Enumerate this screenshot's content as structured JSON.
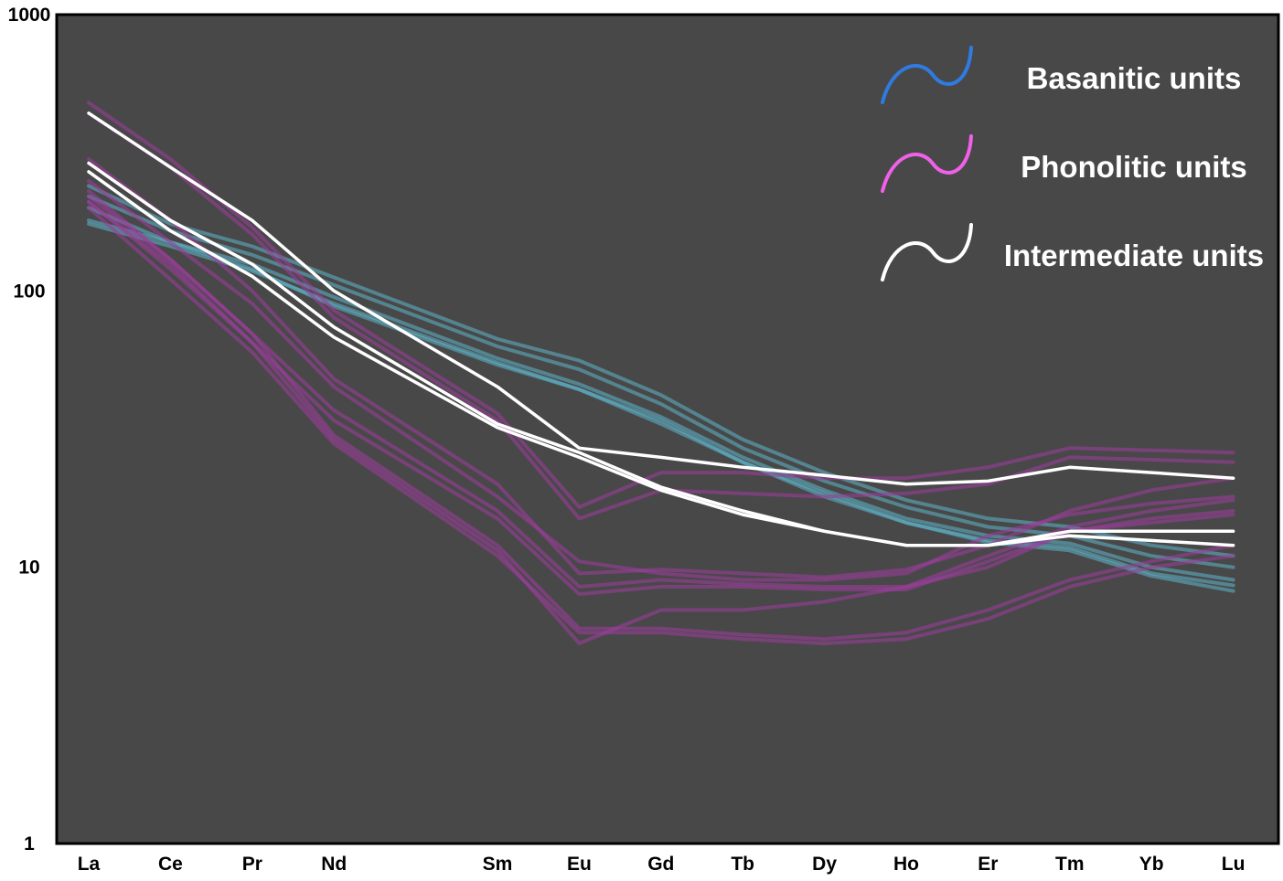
{
  "chart_data": {
    "type": "line",
    "title": "",
    "xlabel": "",
    "ylabel": "",
    "yscale": "log",
    "ylim": [
      1,
      1000
    ],
    "y_ticks": [
      "1",
      "10",
      "100",
      "1000"
    ],
    "y_tick_values": [
      1,
      10,
      100,
      1000
    ],
    "categories": [
      "La",
      "Ce",
      "Pr",
      "Nd",
      "Sm",
      "Eu",
      "Gd",
      "Tb",
      "Dy",
      "Ho",
      "Er",
      "Tm",
      "Yb",
      "Lu"
    ],
    "x_positions": [
      1,
      2,
      3,
      4,
      6,
      7,
      8,
      9,
      10,
      11,
      12,
      13,
      14,
      15
    ],
    "grid": false,
    "legend_position": "top-right",
    "colors": {
      "plot_background": "#484848",
      "basanitic": "#2f7be0",
      "basanitic_lines": "#5fb7cc",
      "phonolitic": "#f060e8",
      "phonolitic_lines": "#9a3e9a",
      "intermediate": "#ffffff"
    },
    "legend": [
      {
        "label": "Basanitic units",
        "group": "basanitic"
      },
      {
        "label": "Phonolitic units",
        "group": "phonolitic"
      },
      {
        "label": "Intermediate units",
        "group": "intermediate"
      }
    ],
    "series": [
      {
        "group": "basanitic",
        "values": [
          200,
          150,
          120,
          88,
          54,
          44,
          33,
          24,
          18,
          14.5,
          12.5,
          11.8,
          9.5,
          8.6
        ]
      },
      {
        "group": "basanitic",
        "values": [
          180,
          150,
          125,
          95,
          57,
          46,
          35,
          25,
          19,
          15,
          13,
          12.2,
          10,
          9
        ]
      },
      {
        "group": "basanitic",
        "values": [
          220,
          165,
          135,
          105,
          63,
          52,
          39,
          27,
          20.5,
          16.5,
          14,
          13,
          11,
          10
        ]
      },
      {
        "group": "basanitic",
        "values": [
          240,
          175,
          145,
          112,
          67,
          56,
          42,
          29,
          22,
          17.5,
          15,
          14,
          12,
          11
        ]
      },
      {
        "group": "basanitic",
        "values": [
          175,
          145,
          118,
          90,
          55,
          44,
          34,
          24,
          18.5,
          14.5,
          12.3,
          11.5,
          9.3,
          8.2
        ]
      },
      {
        "group": "phonolitic",
        "values": [
          480,
          300,
          170,
          85,
          36,
          16.5,
          22,
          22,
          21,
          21,
          23,
          27,
          26.5,
          26
        ]
      },
      {
        "group": "phonolitic",
        "values": [
          440,
          280,
          160,
          80,
          34,
          15,
          19,
          18.5,
          18,
          18.5,
          20,
          25,
          24.5,
          24
        ]
      },
      {
        "group": "phonolitic",
        "values": [
          250,
          150,
          90,
          45,
          18,
          10.5,
          9.5,
          9,
          9,
          9.5,
          13,
          15.5,
          17,
          18
        ]
      },
      {
        "group": "phonolitic",
        "values": [
          300,
          180,
          100,
          48,
          20,
          9.5,
          9.8,
          9.5,
          9.2,
          9.8,
          12,
          16,
          19,
          21
        ]
      },
      {
        "group": "phonolitic",
        "values": [
          220,
          130,
          70,
          37,
          16,
          8.5,
          9,
          8.7,
          8.5,
          8.5,
          11,
          14,
          16,
          17.5
        ]
      },
      {
        "group": "phonolitic",
        "values": [
          210,
          120,
          65,
          34,
          15,
          8,
          8.5,
          8.5,
          8.3,
          8.3,
          10.5,
          13.5,
          15,
          16
        ]
      },
      {
        "group": "phonolitic",
        "values": [
          200,
          110,
          60,
          28,
          11,
          5.8,
          5.8,
          5.5,
          5.3,
          5.5,
          6.5,
          8.5,
          10,
          11
        ]
      },
      {
        "group": "phonolitic",
        "values": [
          230,
          130,
          70,
          30,
          12,
          6,
          6,
          5.7,
          5.5,
          5.8,
          7,
          9,
          10.5,
          12
        ]
      },
      {
        "group": "phonolitic",
        "values": [
          210,
          125,
          65,
          29,
          11.5,
          5.3,
          7,
          7,
          7.5,
          8.5,
          10,
          13.5,
          14.5,
          15.5
        ]
      },
      {
        "group": "intermediate",
        "values": [
          440,
          280,
          180,
          100,
          45,
          27,
          25,
          23,
          21.5,
          20,
          20.5,
          23,
          22,
          21
        ]
      },
      {
        "group": "intermediate",
        "values": [
          290,
          180,
          125,
          74,
          33,
          26,
          19.5,
          16,
          13.5,
          12,
          12,
          13.5,
          13.5,
          13.5
        ]
      },
      {
        "group": "intermediate",
        "values": [
          270,
          165,
          113,
          68,
          32,
          25,
          19,
          15.5,
          13.5,
          12,
          12,
          13,
          12.5,
          12
        ]
      }
    ]
  }
}
